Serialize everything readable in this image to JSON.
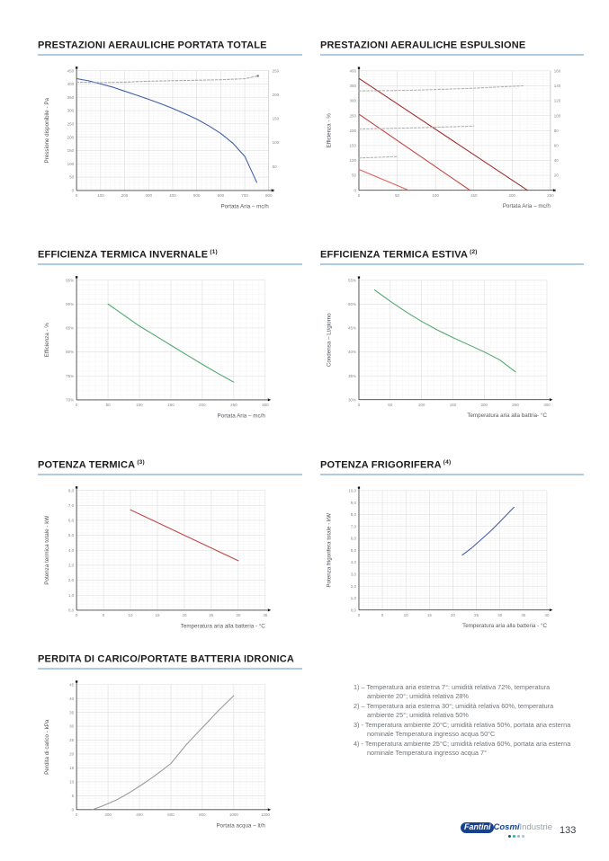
{
  "colors": {
    "title_underline": "#aecbe3"
  },
  "sections": [
    {
      "title": "PRESTAZIONI AERAULICHE PORTATA TOTALE",
      "sup": ""
    },
    {
      "title": "PRESTAZIONI AERAULICHE ESPULSIONE",
      "sup": ""
    },
    {
      "title": "EFFICIENZA TERMICA INVERNALE",
      "sup": "(1)"
    },
    {
      "title": "EFFICIENZA TERMICA ESTIVA",
      "sup": "(2)"
    },
    {
      "title": "POTENZA TERMICA",
      "sup": "(3)"
    },
    {
      "title": "POTENZA FRIGORIFERA",
      "sup": "(4)"
    },
    {
      "title": "PERDITA DI CARICO/PORTATE BATTERIA IDRONICA",
      "sup": ""
    }
  ],
  "chart_data": [
    {
      "type": "line",
      "title": "PRESTAZIONI AERAULICHE PORTATA TOTALE",
      "xlabel": "Portata Aria – mc/h",
      "ylabel": "Pressione disponibile - Pa",
      "xlim": [
        0,
        800
      ],
      "xticks": [
        "0",
        "100",
        "200",
        "300",
        "400",
        "500",
        "600",
        "700",
        "800"
      ],
      "ylim": [
        0,
        450
      ],
      "yticks": [
        "0",
        "50",
        "100",
        "150",
        "200",
        "250",
        "300",
        "350",
        "400",
        "450"
      ],
      "right": {
        "ylim": [
          0,
          250
        ],
        "ticks": [
          "0",
          "50",
          "100",
          "150",
          "200",
          "250"
        ]
      },
      "grid": true,
      "series": [
        {
          "name": "pressione-disponibile",
          "color": "#3f5ea7",
          "axis": "left",
          "points": [
            [
              0,
              420
            ],
            [
              50,
              412
            ],
            [
              100,
              400
            ],
            [
              150,
              388
            ],
            [
              200,
              373
            ],
            [
              250,
              358
            ],
            [
              300,
              342
            ],
            [
              350,
              326
            ],
            [
              400,
              308
            ],
            [
              450,
              289
            ],
            [
              500,
              268
            ],
            [
              550,
              243
            ],
            [
              600,
              214
            ],
            [
              650,
              178
            ],
            [
              700,
              128
            ],
            [
              750,
              30
            ]
          ]
        },
        {
          "name": "assorbimento",
          "color": "#a8a8a8",
          "axis": "right",
          "dash": "2.5,2",
          "end_marker": true,
          "points": [
            [
              0,
              226
            ],
            [
              100,
              225
            ],
            [
              200,
              226
            ],
            [
              300,
              228
            ],
            [
              400,
              229
            ],
            [
              500,
              230
            ],
            [
              600,
              231
            ],
            [
              700,
              233
            ],
            [
              755,
              239
            ]
          ]
        }
      ]
    },
    {
      "type": "line",
      "title": "PRESTAZIONI AERAULICHE ESPULSIONE",
      "xlabel": "Portata Aria – mc/h",
      "ylabel": "Efficienza - %",
      "xlim": [
        0,
        250
      ],
      "xticks": [
        "0",
        "50",
        "100",
        "150",
        "200",
        "250"
      ],
      "ylim": [
        0,
        400
      ],
      "yticks": [
        "0",
        "50",
        "100",
        "150",
        "200",
        "250",
        "300",
        "350",
        "400"
      ],
      "right": {
        "ylim": [
          0,
          160
        ],
        "ticks": [
          "0",
          "20",
          "40",
          "60",
          "80",
          "100",
          "120",
          "140",
          "160"
        ]
      },
      "grid": true,
      "series": [
        {
          "name": "velocita-3",
          "color": "#9e2b2b",
          "axis": "left",
          "points": [
            [
              0,
              375
            ],
            [
              220,
              0
            ]
          ]
        },
        {
          "name": "velocita-2",
          "color": "#c8403f",
          "axis": "left",
          "points": [
            [
              0,
              255
            ],
            [
              145,
              0
            ]
          ]
        },
        {
          "name": "velocita-1",
          "color": "#e0605f",
          "axis": "left",
          "points": [
            [
              0,
              70
            ],
            [
              65,
              0
            ]
          ]
        },
        {
          "name": "assorbimento-3",
          "color": "#b0b0b0",
          "axis": "left",
          "dash": "2.5,2",
          "points": [
            [
              0,
              333
            ],
            [
              70,
              335
            ],
            [
              140,
              341
            ],
            [
              215,
              350
            ]
          ]
        },
        {
          "name": "assorbimento-2",
          "color": "#b0b0b0",
          "axis": "left",
          "dash": "2.5,2",
          "points": [
            [
              0,
              205
            ],
            [
              75,
              209
            ],
            [
              150,
              215
            ]
          ]
        },
        {
          "name": "assorbimento-1",
          "color": "#b0b0b0",
          "axis": "left",
          "dash": "2.5,2",
          "points": [
            [
              0,
              108
            ],
            [
              50,
              113
            ]
          ]
        }
      ]
    },
    {
      "type": "line",
      "title": "EFFICIENZA TERMICA INVERNALE",
      "note": "(1)",
      "xlabel": "Portata Aria – mc/h",
      "ylabel": "Efficienza - %",
      "xlim": [
        0,
        300
      ],
      "xticks": [
        "0",
        "50",
        "100",
        "150",
        "200",
        "250",
        "300"
      ],
      "ylim": [
        70,
        95
      ],
      "yticks": [
        "70%",
        "75%",
        "80%",
        "85%",
        "90%",
        "95%"
      ],
      "grid": true,
      "series": [
        {
          "name": "efficienza-invernale",
          "color": "#4fa86e",
          "axis": "left",
          "points": [
            [
              50,
              90
            ],
            [
              75,
              87.7
            ],
            [
              100,
              85.4
            ],
            [
              125,
              83.4
            ],
            [
              150,
              81.4
            ],
            [
              175,
              79.4
            ],
            [
              200,
              77.4
            ],
            [
              225,
              75.5
            ],
            [
              250,
              73.7
            ]
          ]
        }
      ]
    },
    {
      "type": "line",
      "title": "EFFICIENZA TERMICA ESTIVA",
      "note": "(2)",
      "xlabel": "Temperatura aria alla battria- °C",
      "ylabel": "Condensa – Lt/giorno",
      "xlim": [
        0,
        300
      ],
      "xticks": [
        "0",
        "50",
        "100",
        "150",
        "200",
        "250",
        "300"
      ],
      "ylim": [
        30,
        55
      ],
      "yticks": [
        "30%",
        "35%",
        "40%",
        "45%",
        "50%",
        "55%"
      ],
      "grid": true,
      "series": [
        {
          "name": "condensa",
          "color": "#4fa86e",
          "axis": "left",
          "points": [
            [
              25,
              53
            ],
            [
              50,
              50.6
            ],
            [
              75,
              48.4
            ],
            [
              100,
              46.4
            ],
            [
              125,
              44.6
            ],
            [
              150,
              43
            ],
            [
              175,
              41.5
            ],
            [
              200,
              40
            ],
            [
              225,
              38.3
            ],
            [
              250,
              35.8
            ]
          ]
        }
      ]
    },
    {
      "type": "line",
      "title": "POTENZA TERMICA",
      "note": "(3)",
      "xlabel": "Temperatura aria alla batteria - °C",
      "ylabel": "Potenza termica totale - kW",
      "xlim": [
        0,
        35
      ],
      "xticks": [
        "0",
        "5",
        "10",
        "15",
        "20",
        "25",
        "30",
        "35"
      ],
      "ylim": [
        0,
        8
      ],
      "yticks": [
        "0,0",
        "1,0",
        "2,0",
        "3,0",
        "4,0",
        "5,0",
        "6,0",
        "7,0",
        "8,0"
      ],
      "grid": true,
      "series": [
        {
          "name": "potenza-termica",
          "color": "#c24848",
          "axis": "left",
          "points": [
            [
              10,
              6.7
            ],
            [
              30,
              3.3
            ]
          ]
        }
      ]
    },
    {
      "type": "line",
      "title": "POTENZA FRIGORIFERA",
      "note": "(4)",
      "xlabel": "Temperatura aria alla batteria - °C",
      "ylabel": "Potenza frigorifera totale - kW",
      "xlim": [
        0,
        40
      ],
      "xticks": [
        "0",
        "5",
        "10",
        "15",
        "20",
        "25",
        "30",
        "35",
        "40"
      ],
      "ylim": [
        0,
        10
      ],
      "yticks": [
        "0,0",
        "1,0",
        "2,0",
        "3,0",
        "4,0",
        "5,0",
        "6,0",
        "7,0",
        "8,0",
        "9,0",
        "10,0"
      ],
      "grid": true,
      "series": [
        {
          "name": "potenza-frigorifera",
          "color": "#3f5ea7",
          "axis": "left",
          "points": [
            [
              22,
              4.6
            ],
            [
              24,
              5.2
            ],
            [
              26,
              5.9
            ],
            [
              28,
              6.6
            ],
            [
              30,
              7.4
            ],
            [
              32,
              8.2
            ],
            [
              33,
              8.6
            ]
          ]
        }
      ]
    },
    {
      "type": "line",
      "title": "PERDITA DI CARICO/PORTATE BATTERIA IDRONICA",
      "xlabel": "Portata acqua – lt/h",
      "ylabel": "Perdita di carico - kPa",
      "xlim": [
        0,
        1200
      ],
      "xticks": [
        "0",
        "200",
        "400",
        "600",
        "800",
        "1000",
        "1200"
      ],
      "ylim": [
        0,
        45
      ],
      "yticks": [
        "0",
        "5",
        "10",
        "15",
        "20",
        "25",
        "30",
        "35",
        "40",
        "45"
      ],
      "grid": true,
      "series": [
        {
          "name": "perdita-di-carico",
          "color": "#9a9a9a",
          "axis": "left",
          "points": [
            [
              100,
              0
            ],
            [
              150,
              1
            ],
            [
              200,
              2.2
            ],
            [
              250,
              3.4
            ],
            [
              300,
              4.9
            ],
            [
              350,
              6.6
            ],
            [
              400,
              8.4
            ],
            [
              450,
              10.3
            ],
            [
              500,
              12.3
            ],
            [
              550,
              14.4
            ],
            [
              600,
              16.6
            ],
            [
              620,
              18
            ],
            [
              700,
              23.5
            ],
            [
              800,
              29.5
            ],
            [
              900,
              35.5
            ],
            [
              1000,
              41
            ]
          ]
        }
      ]
    }
  ],
  "footnotes": [
    "1) – Temperatura aria esterna 7°: umidità relativa 72%, temperatura ambiente 20°; umidità relativa 28%",
    "2) – Temperatura aria esterna 30°; umidità relativa 60%, temperatura ambiente 25°; umidità relativa 50%",
    "3) - Temperatura ambiente 20°C; umidità relativa 50%, portata aria esterna nominale Temperatura ingresso acqua 50°C",
    "4) - Temperatura ambiente 25°C; umidità relativa 60%, portata aria esterna nominale Temperatura ingresso acqua 7°"
  ],
  "footer": {
    "brand_oval": "Fantini",
    "brand_bold": "Cosmi",
    "brand_suffix": "Industrie",
    "dot_colors": [
      "#1b4f9c",
      "#27b0ae",
      "#8fb7d8",
      "#b9bdc1"
    ],
    "page_number": "133"
  }
}
